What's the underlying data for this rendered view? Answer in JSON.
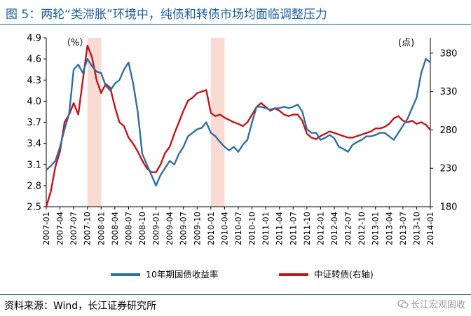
{
  "figure": {
    "title": "图 5：两轮“类滞胀”环境中，纯债和转债市场均面临调整压力",
    "source": "资料来源：Wind，长江证券研究所",
    "watermark": "长江宏观固收"
  },
  "chart_data": {
    "type": "line",
    "left_axis": {
      "unit": "（%）",
      "ylim": [
        2.5,
        4.9
      ],
      "ticks": [
        "2.5",
        "2.8",
        "3.1",
        "3.4",
        "3.7",
        "4.0",
        "4.3",
        "4.6",
        "4.9"
      ]
    },
    "right_axis": {
      "unit": "(点)",
      "ylim": [
        180,
        400
      ],
      "ticks": [
        "180",
        "230",
        "280",
        "330",
        "380"
      ]
    },
    "x_ticks": [
      "2007-01",
      "2007-04",
      "2007-07",
      "2007-10",
      "2008-01",
      "2008-04",
      "2008-07",
      "2008-10",
      "2009-01",
      "2009-04",
      "2009-07",
      "2009-10",
      "2010-01",
      "2010-04",
      "2010-07",
      "2010-10",
      "2011-01",
      "2011-04",
      "2011-07",
      "2011-10",
      "2012-01",
      "2012-04",
      "2012-07",
      "2012-10",
      "2013-01",
      "2013-04",
      "2013-07",
      "2013-10",
      "2014-01"
    ],
    "highlighted_periods": [
      {
        "start": "2007-10",
        "end": "2008-01"
      },
      {
        "start": "2010-01",
        "end": "2010-04"
      }
    ],
    "legend_placement": "bottom",
    "grid": false,
    "series": [
      {
        "name": "10年期国债收益率",
        "axis": "left",
        "color": "#2e6fa3",
        "x": [
          "2007-01",
          "2007-02",
          "2007-03",
          "2007-04",
          "2007-05",
          "2007-06",
          "2007-07",
          "2007-08",
          "2007-09",
          "2007-10",
          "2007-11",
          "2007-12",
          "2008-01",
          "2008-02",
          "2008-03",
          "2008-04",
          "2008-05",
          "2008-06",
          "2008-07",
          "2008-08",
          "2008-09",
          "2008-10",
          "2008-11",
          "2008-12",
          "2009-01",
          "2009-02",
          "2009-03",
          "2009-04",
          "2009-05",
          "2009-06",
          "2009-07",
          "2009-08",
          "2009-09",
          "2009-10",
          "2009-11",
          "2009-12",
          "2010-01",
          "2010-02",
          "2010-03",
          "2010-04",
          "2010-05",
          "2010-06",
          "2010-07",
          "2010-08",
          "2010-09",
          "2010-10",
          "2010-11",
          "2010-12",
          "2011-01",
          "2011-02",
          "2011-03",
          "2011-04",
          "2011-05",
          "2011-06",
          "2011-07",
          "2011-08",
          "2011-09",
          "2011-10",
          "2011-11",
          "2011-12",
          "2012-01",
          "2012-02",
          "2012-03",
          "2012-04",
          "2012-05",
          "2012-06",
          "2012-07",
          "2012-08",
          "2012-09",
          "2012-10",
          "2012-11",
          "2012-12",
          "2013-01",
          "2013-02",
          "2013-03",
          "2013-04",
          "2013-05",
          "2013-06",
          "2013-07",
          "2013-08",
          "2013-09",
          "2013-10",
          "2013-11",
          "2013-12",
          "2014-01"
        ],
        "values": [
          3.02,
          3.08,
          3.15,
          3.35,
          3.6,
          3.82,
          4.45,
          4.52,
          4.4,
          4.6,
          4.5,
          4.42,
          4.4,
          4.22,
          4.15,
          4.25,
          4.3,
          4.45,
          4.55,
          4.25,
          3.85,
          3.25,
          3.1,
          2.95,
          2.8,
          2.95,
          3.05,
          3.15,
          3.1,
          3.25,
          3.35,
          3.5,
          3.55,
          3.6,
          3.62,
          3.7,
          3.55,
          3.5,
          3.42,
          3.35,
          3.3,
          3.35,
          3.28,
          3.38,
          3.45,
          3.7,
          3.92,
          3.92,
          3.9,
          3.88,
          3.9,
          3.9,
          3.92,
          3.9,
          3.92,
          3.95,
          3.85,
          3.6,
          3.55,
          3.55,
          3.45,
          3.48,
          3.52,
          3.47,
          3.35,
          3.32,
          3.28,
          3.38,
          3.42,
          3.45,
          3.5,
          3.5,
          3.52,
          3.55,
          3.55,
          3.5,
          3.45,
          3.55,
          3.65,
          3.75,
          3.9,
          4.05,
          4.4,
          4.6,
          4.55
        ]
      },
      {
        "name": "中证转债(右轴)",
        "axis": "right",
        "color": "#c0161c",
        "x": [
          "2007-01",
          "2007-02",
          "2007-03",
          "2007-04",
          "2007-05",
          "2007-06",
          "2007-07",
          "2007-08",
          "2007-09",
          "2007-10",
          "2007-11",
          "2007-12",
          "2008-01",
          "2008-02",
          "2008-03",
          "2008-04",
          "2008-05",
          "2008-06",
          "2008-07",
          "2008-08",
          "2008-09",
          "2008-10",
          "2008-11",
          "2008-12",
          "2009-01",
          "2009-02",
          "2009-03",
          "2009-04",
          "2009-05",
          "2009-06",
          "2009-07",
          "2009-08",
          "2009-09",
          "2009-10",
          "2009-11",
          "2009-12",
          "2010-01",
          "2010-02",
          "2010-03",
          "2010-04",
          "2010-05",
          "2010-06",
          "2010-07",
          "2010-08",
          "2010-09",
          "2010-10",
          "2010-11",
          "2010-12",
          "2011-01",
          "2011-02",
          "2011-03",
          "2011-04",
          "2011-05",
          "2011-06",
          "2011-07",
          "2011-08",
          "2011-09",
          "2011-10",
          "2011-11",
          "2011-12",
          "2012-01",
          "2012-02",
          "2012-03",
          "2012-04",
          "2012-05",
          "2012-06",
          "2012-07",
          "2012-08",
          "2012-09",
          "2012-10",
          "2012-11",
          "2012-12",
          "2013-01",
          "2013-02",
          "2013-03",
          "2013-04",
          "2013-05",
          "2013-06",
          "2013-07",
          "2013-08",
          "2013-09",
          "2013-10",
          "2013-11",
          "2013-12",
          "2014-01"
        ],
        "values": [
          180,
          200,
          232,
          252,
          290,
          300,
          315,
          300,
          345,
          390,
          375,
          345,
          328,
          340,
          335,
          310,
          290,
          285,
          270,
          262,
          252,
          240,
          230,
          225,
          225,
          235,
          250,
          258,
          275,
          290,
          305,
          318,
          322,
          328,
          330,
          332,
          302,
          298,
          300,
          296,
          293,
          290,
          288,
          285,
          290,
          300,
          310,
          315,
          310,
          305,
          308,
          305,
          300,
          298,
          300,
          300,
          292,
          275,
          270,
          268,
          272,
          275,
          278,
          276,
          274,
          272,
          270,
          270,
          272,
          274,
          276,
          278,
          282,
          282,
          284,
          288,
          295,
          298,
          292,
          290,
          292,
          288,
          290,
          287,
          280
        ]
      }
    ]
  }
}
